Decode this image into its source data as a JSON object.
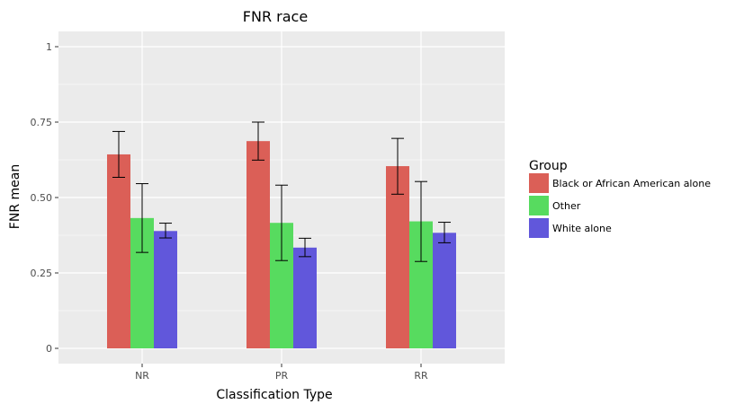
{
  "chart_data": {
    "type": "bar",
    "title": "FNR race",
    "xlabel": "Classification Type",
    "ylabel": "FNR mean",
    "categories": [
      "NR",
      "PR",
      "RR"
    ],
    "ylim": [
      0,
      1
    ],
    "yticks": [
      0,
      0.25,
      0.5,
      0.75,
      1
    ],
    "ytick_labels": [
      "0",
      "0.25",
      "0.50",
      "0.75",
      "1"
    ],
    "grid": true,
    "legend_position": "right",
    "legend_title": "Group",
    "series": [
      {
        "name": "Black or African American alone",
        "color": "#DB5F57",
        "values": [
          0.643,
          0.687,
          0.604
        ],
        "err_low": [
          0.567,
          0.624,
          0.511
        ],
        "err_high": [
          0.719,
          0.75,
          0.696
        ]
      },
      {
        "name": "Other",
        "color": "#57DB5F",
        "values": [
          0.432,
          0.416,
          0.421
        ],
        "err_low": [
          0.318,
          0.291,
          0.288
        ],
        "err_high": [
          0.546,
          0.541,
          0.553
        ]
      },
      {
        "name": "White alone",
        "color": "#6157DB",
        "values": [
          0.389,
          0.334,
          0.383
        ],
        "err_low": [
          0.366,
          0.304,
          0.35
        ],
        "err_high": [
          0.415,
          0.365,
          0.418
        ]
      }
    ]
  }
}
